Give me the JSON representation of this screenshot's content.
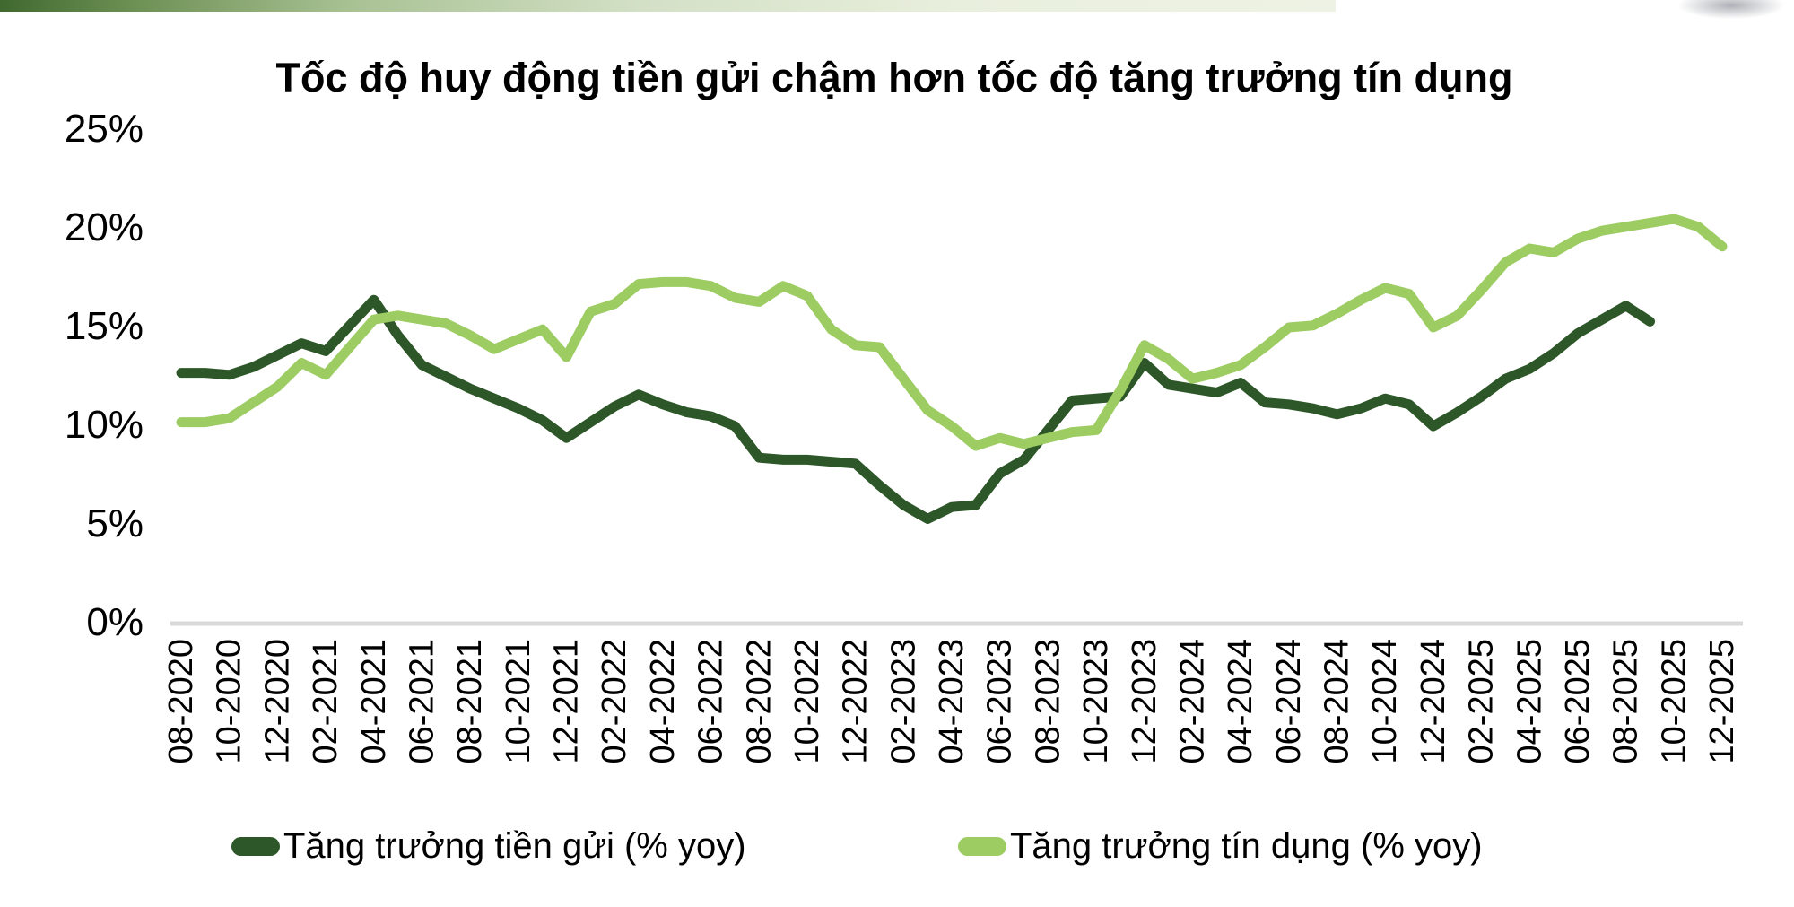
{
  "chart_data": {
    "type": "line",
    "title": "Tốc độ huy động tiền gửi chậm hơn tốc độ tăng trưởng tín dụng",
    "x": [
      "08-2020",
      "09-2020",
      "10-2020",
      "11-2020",
      "12-2020",
      "01-2021",
      "02-2021",
      "03-2021",
      "04-2021",
      "05-2021",
      "06-2021",
      "07-2021",
      "08-2021",
      "09-2021",
      "10-2021",
      "11-2021",
      "12-2021",
      "01-2022",
      "02-2022",
      "03-2022",
      "04-2022",
      "05-2022",
      "06-2022",
      "07-2022",
      "08-2022",
      "09-2022",
      "10-2022",
      "11-2022",
      "12-2022",
      "01-2023",
      "02-2023",
      "03-2023",
      "04-2023",
      "05-2023",
      "06-2023",
      "07-2023",
      "08-2023",
      "09-2023",
      "10-2023",
      "11-2023",
      "12-2023",
      "01-2024",
      "02-2024",
      "03-2024",
      "04-2024",
      "05-2024",
      "06-2024",
      "07-2024",
      "08-2024",
      "09-2024",
      "10-2024",
      "11-2024",
      "12-2024",
      "01-2025",
      "02-2025",
      "03-2025",
      "04-2025",
      "05-2025",
      "06-2025",
      "07-2025",
      "08-2025",
      "09-2025",
      "10-2025",
      "11-2025",
      "12-2025"
    ],
    "x_tick_step": 2,
    "ylim": [
      0,
      25
    ],
    "y_tick_values": [
      0,
      5,
      10,
      15,
      20,
      25
    ],
    "y_tick_labels": [
      "0%",
      "5%",
      "10%",
      "15%",
      "20%",
      "25%"
    ],
    "grid": false,
    "axis_color": "#d9d9d9",
    "legend_position": "bottom",
    "series": [
      {
        "name": "Tăng trưởng tiền gửi (% yoy)",
        "color": "#2d5728",
        "values": [
          12.7,
          12.7,
          12.6,
          13.0,
          13.6,
          14.2,
          13.8,
          15.1,
          16.4,
          14.6,
          13.1,
          12.5,
          11.9,
          11.4,
          10.9,
          10.3,
          9.4,
          10.2,
          11.0,
          11.6,
          11.1,
          10.7,
          10.5,
          10.0,
          8.4,
          8.3,
          8.3,
          8.2,
          8.1,
          7.0,
          6.0,
          5.3,
          5.9,
          6.0,
          7.6,
          8.3,
          9.8,
          11.3,
          11.4,
          11.5,
          13.2,
          12.1,
          11.9,
          11.7,
          12.2,
          11.2,
          11.1,
          10.9,
          10.6,
          10.9,
          11.4,
          11.1,
          10.0,
          10.7,
          11.5,
          12.4,
          12.9,
          13.7,
          14.7,
          15.4,
          16.1,
          15.3
        ]
      },
      {
        "name": "Tăng trưởng tín dụng (% yoy)",
        "color": "#9ccc62",
        "values": [
          10.2,
          10.2,
          10.4,
          11.2,
          12.0,
          13.2,
          12.6,
          14.0,
          15.4,
          15.6,
          15.4,
          15.2,
          14.6,
          13.9,
          14.4,
          14.9,
          13.5,
          15.8,
          16.2,
          17.2,
          17.3,
          17.3,
          17.1,
          16.5,
          16.3,
          17.1,
          16.6,
          14.9,
          14.1,
          14.0,
          12.4,
          10.8,
          10.0,
          9.0,
          9.4,
          9.1,
          9.4,
          9.7,
          9.8,
          11.8,
          14.1,
          13.4,
          12.4,
          12.7,
          13.1,
          14.0,
          15.0,
          15.1,
          15.7,
          16.4,
          17.0,
          16.7,
          15.0,
          15.6,
          16.9,
          18.3,
          19.0,
          18.8,
          19.5,
          19.9,
          20.1,
          20.3,
          20.5,
          20.1,
          19.1
        ]
      }
    ]
  }
}
